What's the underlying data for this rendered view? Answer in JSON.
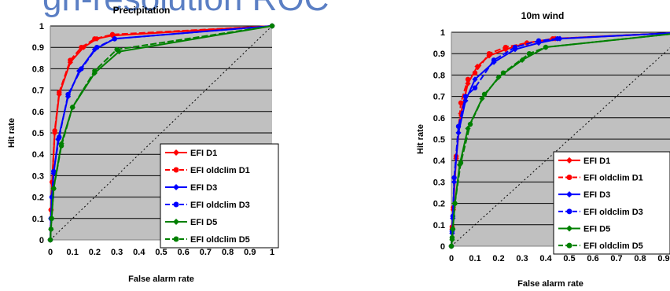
{
  "header": {
    "cut_title": "gh-resolution ROC"
  },
  "chart_data": [
    {
      "type": "line",
      "title": "Precipitation",
      "xlabel": "False alarm rate",
      "ylabel": "Hit rate",
      "xlim": [
        0,
        1
      ],
      "ylim": [
        0,
        1
      ],
      "x_ticks": [
        "0",
        "0.1",
        "0.2",
        "0.3",
        "0.4",
        "0.5",
        "0.6",
        "0.7",
        "0.8",
        "0.9",
        "1"
      ],
      "y_ticks": [
        "0",
        "0.1",
        "0.2",
        "0.3",
        "0.4",
        "0.5",
        "0.6",
        "0.7",
        "0.8",
        "0.9",
        "1"
      ],
      "grid": true,
      "background": "#c0c0c0",
      "diagonal_reference": true,
      "legend_position": "bottom-right",
      "series": [
        {
          "name": "EFI D1",
          "color": "#ff0000",
          "style": "solid",
          "marker": "diamond",
          "x": [
            0,
            0.003,
            0.008,
            0.02,
            0.04,
            0.09,
            0.15,
            0.21,
            0.28,
            1
          ],
          "y": [
            0,
            0.14,
            0.27,
            0.5,
            0.68,
            0.83,
            0.9,
            0.94,
            0.955,
            1
          ]
        },
        {
          "name": "EFI oldclim D1",
          "color": "#ff0000",
          "style": "dash",
          "marker": "circle",
          "x": [
            0,
            0.003,
            0.008,
            0.02,
            0.04,
            0.09,
            0.14,
            0.2,
            0.28,
            1
          ],
          "y": [
            0,
            0.14,
            0.27,
            0.51,
            0.69,
            0.84,
            0.9,
            0.94,
            0.96,
            1
          ]
        },
        {
          "name": "EFI D3",
          "color": "#0000ff",
          "style": "solid",
          "marker": "diamond",
          "x": [
            0,
            0.003,
            0.007,
            0.015,
            0.035,
            0.08,
            0.13,
            0.2,
            0.29,
            1
          ],
          "y": [
            0,
            0.1,
            0.2,
            0.31,
            0.47,
            0.67,
            0.79,
            0.89,
            0.94,
            1
          ]
        },
        {
          "name": "EFI oldclim D3",
          "color": "#0000ff",
          "style": "dash",
          "marker": "circle",
          "x": [
            0,
            0.003,
            0.007,
            0.015,
            0.04,
            0.08,
            0.14,
            0.21,
            0.29,
            1
          ],
          "y": [
            0,
            0.1,
            0.2,
            0.32,
            0.48,
            0.68,
            0.8,
            0.9,
            0.94,
            1
          ]
        },
        {
          "name": "EFI D5",
          "color": "#008000",
          "style": "solid",
          "marker": "diamond",
          "x": [
            0,
            0.003,
            0.006,
            0.015,
            0.05,
            0.1,
            0.2,
            0.31,
            1
          ],
          "y": [
            0,
            0.05,
            0.1,
            0.24,
            0.45,
            0.62,
            0.78,
            0.88,
            1
          ]
        },
        {
          "name": "EFI oldclim D5",
          "color": "#008000",
          "style": "dash",
          "marker": "circle",
          "x": [
            0,
            0.003,
            0.006,
            0.015,
            0.05,
            0.1,
            0.2,
            0.3,
            1
          ],
          "y": [
            0,
            0.05,
            0.1,
            0.24,
            0.44,
            0.62,
            0.79,
            0.89,
            1
          ]
        }
      ]
    },
    {
      "type": "line",
      "title": "10m wind",
      "xlabel": "False alarm rate",
      "ylabel": "Hit rate",
      "xlim": [
        0,
        1
      ],
      "ylim": [
        0,
        1
      ],
      "x_ticks": [
        "0",
        "0.1",
        "0.2",
        "0.3",
        "0.4",
        "0.5",
        "0.6",
        "0.7",
        "0.8",
        "0.9"
      ],
      "y_ticks": [
        "0",
        "0.1",
        "0.2",
        "0.3",
        "0.4",
        "0.5",
        "0.6",
        "0.7",
        "0.8",
        "0.9",
        "1"
      ],
      "grid": true,
      "background": "#c0c0c0",
      "diagonal_reference": true,
      "legend_position": "bottom-right",
      "series": [
        {
          "name": "EFI D1",
          "color": "#ff0000",
          "style": "solid",
          "marker": "diamond",
          "x": [
            0,
            0.003,
            0.008,
            0.02,
            0.04,
            0.07,
            0.11,
            0.16,
            0.23,
            0.32,
            0.44,
            1
          ],
          "y": [
            0,
            0.08,
            0.17,
            0.41,
            0.62,
            0.76,
            0.84,
            0.89,
            0.92,
            0.95,
            0.97,
            1
          ]
        },
        {
          "name": "EFI oldclim D1",
          "color": "#ff0000",
          "style": "dash",
          "marker": "circle",
          "x": [
            0,
            0.003,
            0.008,
            0.02,
            0.04,
            0.07,
            0.1,
            0.16,
            0.23,
            0.32,
            0.43,
            1
          ],
          "y": [
            0,
            0.09,
            0.18,
            0.42,
            0.67,
            0.78,
            0.81,
            0.9,
            0.93,
            0.95,
            0.97,
            1
          ]
        },
        {
          "name": "EFI D3",
          "color": "#0000ff",
          "style": "solid",
          "marker": "diamond",
          "x": [
            0,
            0.003,
            0.006,
            0.012,
            0.03,
            0.06,
            0.1,
            0.18,
            0.27,
            0.37,
            0.46,
            1
          ],
          "y": [
            0,
            0.06,
            0.13,
            0.3,
            0.53,
            0.68,
            0.78,
            0.86,
            0.92,
            0.95,
            0.97,
            1
          ]
        },
        {
          "name": "EFI oldclim D3",
          "color": "#0000ff",
          "style": "dash",
          "marker": "circle",
          "x": [
            0,
            0.003,
            0.006,
            0.012,
            0.03,
            0.06,
            0.1,
            0.18,
            0.27,
            0.37,
            0.45,
            1
          ],
          "y": [
            0,
            0.07,
            0.14,
            0.32,
            0.56,
            0.7,
            0.74,
            0.87,
            0.93,
            0.96,
            0.97,
            1
          ]
        },
        {
          "name": "EFI D5",
          "color": "#008000",
          "style": "solid",
          "marker": "diamond",
          "x": [
            0,
            0.003,
            0.006,
            0.015,
            0.035,
            0.07,
            0.13,
            0.2,
            0.3,
            0.4,
            1
          ],
          "y": [
            0,
            0.03,
            0.08,
            0.2,
            0.38,
            0.55,
            0.69,
            0.79,
            0.87,
            0.93,
            1
          ]
        },
        {
          "name": "EFI oldclim D5",
          "color": "#008000",
          "style": "dash",
          "marker": "circle",
          "x": [
            0,
            0.003,
            0.006,
            0.015,
            0.04,
            0.08,
            0.14,
            0.22,
            0.33,
            0.4,
            1
          ],
          "y": [
            0,
            0.04,
            0.08,
            0.2,
            0.39,
            0.57,
            0.71,
            0.81,
            0.9,
            0.93,
            1
          ]
        }
      ]
    }
  ]
}
